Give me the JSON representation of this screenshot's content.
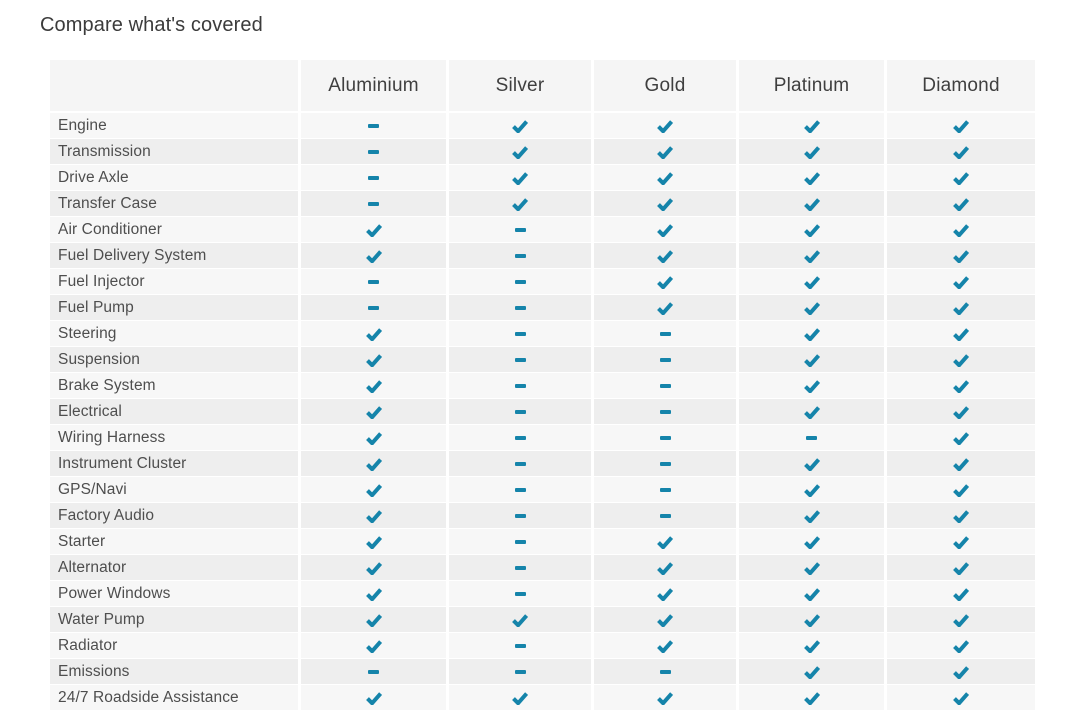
{
  "page": {
    "title": "Compare what's covered"
  },
  "colors": {
    "accent_teal": "#1584aa",
    "header_bg": "#f5f5f5",
    "row_bg_odd": "#f7f7f7",
    "row_bg_even": "#eeeeee"
  },
  "icons": {
    "covered": "check-icon",
    "not_covered": "dash-icon"
  },
  "table": {
    "plans": [
      "Aluminium",
      "Silver",
      "Gold",
      "Platinum",
      "Diamond"
    ],
    "rows": [
      {
        "label": "Engine",
        "covered": [
          false,
          true,
          true,
          true,
          true
        ]
      },
      {
        "label": "Transmission",
        "covered": [
          false,
          true,
          true,
          true,
          true
        ]
      },
      {
        "label": "Drive Axle",
        "covered": [
          false,
          true,
          true,
          true,
          true
        ]
      },
      {
        "label": "Transfer Case",
        "covered": [
          false,
          true,
          true,
          true,
          true
        ]
      },
      {
        "label": "Air Conditioner",
        "covered": [
          true,
          false,
          true,
          true,
          true
        ]
      },
      {
        "label": "Fuel Delivery System",
        "covered": [
          true,
          false,
          true,
          true,
          true
        ]
      },
      {
        "label": "Fuel Injector",
        "covered": [
          false,
          false,
          true,
          true,
          true
        ]
      },
      {
        "label": "Fuel Pump",
        "covered": [
          false,
          false,
          true,
          true,
          true
        ]
      },
      {
        "label": "Steering",
        "covered": [
          true,
          false,
          false,
          true,
          true
        ]
      },
      {
        "label": "Suspension",
        "covered": [
          true,
          false,
          false,
          true,
          true
        ]
      },
      {
        "label": "Brake System",
        "covered": [
          true,
          false,
          false,
          true,
          true
        ]
      },
      {
        "label": "Electrical",
        "covered": [
          true,
          false,
          false,
          true,
          true
        ]
      },
      {
        "label": "Wiring Harness",
        "covered": [
          true,
          false,
          false,
          false,
          true
        ]
      },
      {
        "label": "Instrument Cluster",
        "covered": [
          true,
          false,
          false,
          true,
          true
        ]
      },
      {
        "label": "GPS/Navi",
        "covered": [
          true,
          false,
          false,
          true,
          true
        ]
      },
      {
        "label": "Factory Audio",
        "covered": [
          true,
          false,
          false,
          true,
          true
        ]
      },
      {
        "label": "Starter",
        "covered": [
          true,
          false,
          true,
          true,
          true
        ]
      },
      {
        "label": "Alternator",
        "covered": [
          true,
          false,
          true,
          true,
          true
        ]
      },
      {
        "label": "Power Windows",
        "covered": [
          true,
          false,
          true,
          true,
          true
        ]
      },
      {
        "label": "Water Pump",
        "covered": [
          true,
          true,
          true,
          true,
          true
        ]
      },
      {
        "label": "Radiator",
        "covered": [
          true,
          false,
          true,
          true,
          true
        ]
      },
      {
        "label": "Emissions",
        "covered": [
          false,
          false,
          false,
          true,
          true
        ]
      },
      {
        "label": "24/7 Roadside Assistance",
        "covered": [
          true,
          true,
          true,
          true,
          true
        ]
      }
    ]
  }
}
